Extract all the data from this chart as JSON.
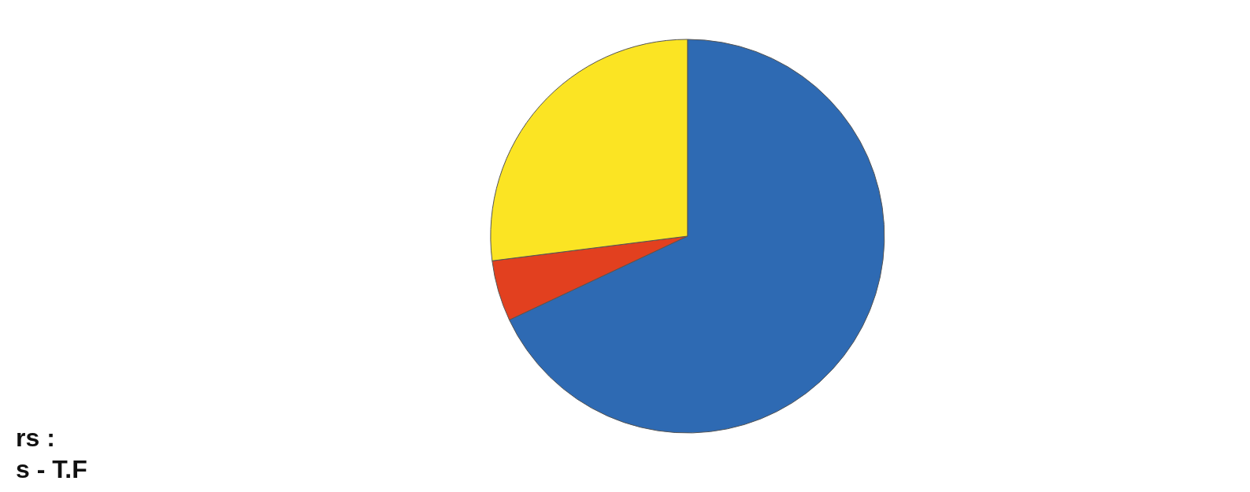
{
  "chart_data": {
    "type": "pie",
    "categories": [
      null,
      null,
      null
    ],
    "values": [
      68,
      5,
      27
    ],
    "colors": [
      "#2e6ab3",
      "#e2401f",
      "#fbe423"
    ],
    "annotations": [
      "rs :",
      "s - T.F"
    ]
  }
}
